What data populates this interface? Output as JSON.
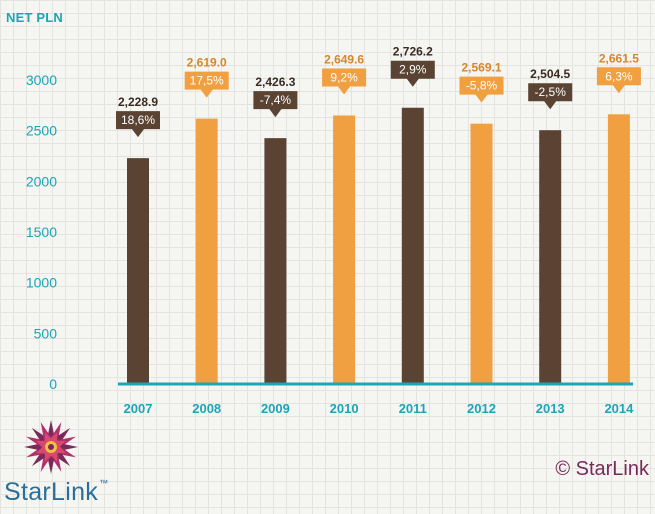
{
  "unit_label": "NET PLN",
  "brand": {
    "name": "StarLink",
    "trademark": "™",
    "copyright": "© StarLink"
  },
  "colors": {
    "dark": "#5a4332",
    "orange": "#f0a040",
    "axis": "#1aa6b7",
    "label_text": "#3a2a20",
    "orange_label_text": "#d8862a"
  },
  "chart_data": {
    "type": "bar",
    "categories": [
      "2007",
      "2008",
      "2009",
      "2010",
      "2011",
      "2012",
      "2013",
      "2014"
    ],
    "values": [
      2228.9,
      2619.0,
      2426.3,
      2649.6,
      2726.2,
      2569.1,
      2504.5,
      2661.5
    ],
    "value_labels": [
      "2,228.9",
      "2,619.0",
      "2,426.3",
      "2,649.6",
      "2,726.2",
      "2,569.1",
      "2,504.5",
      "2,661.5"
    ],
    "change_labels": [
      "18,6%",
      "17,5%",
      "-7,4%",
      "9,2%",
      "2,9%",
      "-5,8%",
      "-2,5%",
      "6,3%"
    ],
    "bar_colors": [
      "dark",
      "orange",
      "dark",
      "orange",
      "dark",
      "orange",
      "dark",
      "orange"
    ],
    "yticks": [
      0,
      500,
      1000,
      1500,
      2000,
      2500,
      3000
    ],
    "ylim": [
      0,
      3000
    ],
    "grid": false,
    "legend": "none"
  }
}
